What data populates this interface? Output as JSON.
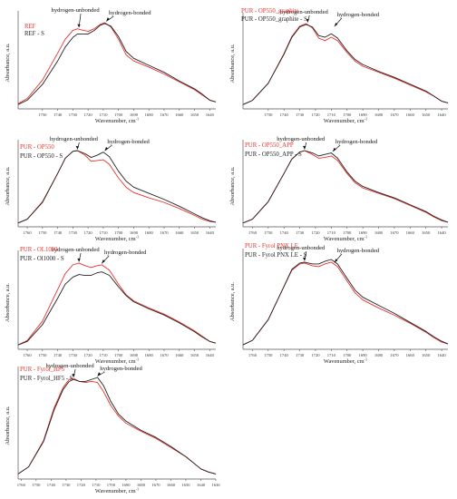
{
  "chart_data": [
    {
      "type": "line",
      "ylabel": "Absorbance, a.u.",
      "xlabel": "Wavenumber, cm",
      "xlabel_sup": "-1",
      "x_reversed": true,
      "xlim": [
        1766,
        1636
      ],
      "ylim": [
        0,
        1
      ],
      "x_ticks": [
        "1750",
        "1740",
        "1730",
        "1720",
        "1710",
        "1700",
        "1690",
        "1680",
        "1670",
        "1660",
        "1650",
        "1640"
      ],
      "annotations": [
        "hydrogen-unbonded",
        "hydrogen-bonded"
      ],
      "annotation_x": [
        1726,
        1708
      ],
      "series": [
        {
          "name": "REF",
          "color": "#e8322b",
          "x": [
            1766,
            1760,
            1750,
            1740,
            1735,
            1730,
            1727,
            1725,
            1720,
            1716,
            1712,
            1709,
            1705,
            1700,
            1695,
            1690,
            1680,
            1670,
            1660,
            1650,
            1645,
            1640,
            1636
          ],
          "y": [
            0.06,
            0.12,
            0.33,
            0.64,
            0.8,
            0.9,
            0.92,
            0.91,
            0.89,
            0.92,
            0.97,
            0.99,
            0.94,
            0.8,
            0.62,
            0.55,
            0.48,
            0.4,
            0.31,
            0.22,
            0.16,
            0.1,
            0.08
          ]
        },
        {
          "name": "REF - S",
          "color": "#222222",
          "x": [
            1766,
            1760,
            1750,
            1740,
            1735,
            1730,
            1727,
            1725,
            1720,
            1716,
            1712,
            1709,
            1705,
            1700,
            1695,
            1690,
            1680,
            1670,
            1660,
            1650,
            1645,
            1640,
            1636
          ],
          "y": [
            0.05,
            0.1,
            0.28,
            0.55,
            0.71,
            0.82,
            0.86,
            0.86,
            0.86,
            0.9,
            0.96,
            0.98,
            0.95,
            0.83,
            0.66,
            0.58,
            0.5,
            0.42,
            0.32,
            0.23,
            0.17,
            0.1,
            0.08
          ]
        }
      ]
    },
    {
      "type": "line",
      "ylabel": "Absorbance, a.u.",
      "xlabel": "Wavenumber, cm",
      "xlabel_sup": "-1",
      "x_reversed": true,
      "xlim": [
        1766,
        1636
      ],
      "ylim": [
        0,
        1
      ],
      "x_ticks": [
        "1750",
        "1740",
        "1730",
        "1720",
        "1710",
        "1700",
        "1690",
        "1680",
        "1670",
        "1660",
        "1650",
        "1640"
      ],
      "annotations": [
        "hydrogen-unbonded",
        "hydrogen-bonded"
      ],
      "annotation_x": [
        1725,
        1708
      ],
      "series": [
        {
          "name": "PUR - OP550_graphite",
          "color": "#e8322b",
          "x": [
            1766,
            1760,
            1750,
            1740,
            1735,
            1730,
            1726,
            1722,
            1718,
            1714,
            1710,
            1706,
            1700,
            1695,
            1690,
            1680,
            1670,
            1660,
            1650,
            1645,
            1640,
            1636
          ],
          "y": [
            0.05,
            0.1,
            0.3,
            0.65,
            0.85,
            0.97,
            1.0,
            0.95,
            0.83,
            0.8,
            0.84,
            0.8,
            0.66,
            0.56,
            0.5,
            0.43,
            0.36,
            0.28,
            0.2,
            0.15,
            0.09,
            0.07
          ]
        },
        {
          "name": "PUR - OP550_graphite - S",
          "color": "#222222",
          "x": [
            1766,
            1760,
            1750,
            1740,
            1735,
            1730,
            1726,
            1722,
            1718,
            1714,
            1710,
            1706,
            1700,
            1695,
            1690,
            1680,
            1670,
            1660,
            1650,
            1645,
            1640,
            1636
          ],
          "y": [
            0.05,
            0.1,
            0.3,
            0.64,
            0.84,
            0.96,
            0.99,
            0.96,
            0.86,
            0.84,
            0.88,
            0.83,
            0.68,
            0.58,
            0.52,
            0.44,
            0.37,
            0.29,
            0.21,
            0.15,
            0.09,
            0.07
          ]
        }
      ]
    },
    {
      "type": "line",
      "ylabel": "Absorbance, a.u.",
      "xlabel": "Wavenumber, cm",
      "xlabel_sup": "-1",
      "x_reversed": true,
      "xlim": [
        1766,
        1636
      ],
      "ylim": [
        0,
        1
      ],
      "x_ticks": [
        "1760",
        "1750",
        "1740",
        "1730",
        "1720",
        "1710",
        "1700",
        "1690",
        "1680",
        "1670",
        "1660",
        "1650",
        "1640"
      ],
      "annotations": [
        "hydrogen-unbonded",
        "hydrogen-bonded"
      ],
      "annotation_x": [
        1727,
        1709
      ],
      "series": [
        {
          "name": "PUR - OP550",
          "color": "#e8322b",
          "x": [
            1766,
            1760,
            1750,
            1740,
            1735,
            1730,
            1727,
            1722,
            1718,
            1714,
            1710,
            1706,
            1700,
            1695,
            1690,
            1680,
            1670,
            1660,
            1650,
            1645,
            1640,
            1636
          ],
          "y": [
            0.05,
            0.1,
            0.33,
            0.7,
            0.9,
            0.99,
            1.0,
            0.94,
            0.86,
            0.87,
            0.88,
            0.82,
            0.64,
            0.52,
            0.45,
            0.38,
            0.32,
            0.24,
            0.15,
            0.1,
            0.07,
            0.06
          ]
        },
        {
          "name": "PUR - OP550 - S",
          "color": "#222222",
          "x": [
            1766,
            1760,
            1750,
            1740,
            1735,
            1730,
            1727,
            1722,
            1718,
            1714,
            1710,
            1706,
            1700,
            1695,
            1690,
            1680,
            1670,
            1660,
            1650,
            1645,
            1640,
            1636
          ],
          "y": [
            0.05,
            0.1,
            0.32,
            0.7,
            0.9,
            0.99,
            1.0,
            0.96,
            0.91,
            0.94,
            0.98,
            0.92,
            0.73,
            0.6,
            0.52,
            0.44,
            0.36,
            0.27,
            0.17,
            0.12,
            0.08,
            0.06
          ]
        }
      ]
    },
    {
      "type": "line",
      "ylabel": "Absorbance, a.u.",
      "xlabel": "Wavenumber, cm",
      "xlabel_sup": "-1",
      "x_reversed": true,
      "xlim": [
        1766,
        1636
      ],
      "ylim": [
        0,
        1
      ],
      "x_ticks": [
        "1760",
        "1750",
        "1740",
        "1730",
        "1720",
        "1710",
        "1700",
        "1690",
        "1680",
        "1670",
        "1660",
        "1650",
        "1640"
      ],
      "annotations": [
        "hydrogen-unbonded",
        "hydrogen-bonded"
      ],
      "annotation_x": [
        1727,
        1709
      ],
      "series": [
        {
          "name": "PUR - OP550_APP",
          "color": "#e8322b",
          "x": [
            1766,
            1760,
            1750,
            1740,
            1735,
            1730,
            1727,
            1722,
            1718,
            1714,
            1710,
            1706,
            1700,
            1695,
            1690,
            1680,
            1670,
            1660,
            1650,
            1645,
            1640,
            1636
          ],
          "y": [
            0.05,
            0.1,
            0.33,
            0.7,
            0.89,
            0.98,
            1.0,
            0.95,
            0.9,
            0.91,
            0.93,
            0.87,
            0.7,
            0.58,
            0.51,
            0.44,
            0.37,
            0.28,
            0.19,
            0.13,
            0.08,
            0.06
          ]
        },
        {
          "name": "PUR - OP550_APP - S",
          "color": "#222222",
          "x": [
            1766,
            1760,
            1750,
            1740,
            1735,
            1730,
            1727,
            1722,
            1718,
            1714,
            1710,
            1706,
            1700,
            1695,
            1690,
            1680,
            1670,
            1660,
            1650,
            1645,
            1640,
            1636
          ],
          "y": [
            0.05,
            0.1,
            0.33,
            0.7,
            0.89,
            0.98,
            1.0,
            0.97,
            0.93,
            0.95,
            0.97,
            0.9,
            0.72,
            0.6,
            0.53,
            0.45,
            0.38,
            0.29,
            0.2,
            0.14,
            0.09,
            0.06
          ]
        }
      ]
    },
    {
      "type": "line",
      "ylabel": "Absorbance, a.u.",
      "xlabel": "Wavenumber, cm",
      "xlabel_sup": "-1",
      "x_reversed": true,
      "xlim": [
        1766,
        1636
      ],
      "ylim": [
        0,
        1
      ],
      "x_ticks": [
        "1760",
        "1750",
        "1740",
        "1730",
        "1720",
        "1710",
        "1700",
        "1690",
        "1680",
        "1670",
        "1660",
        "1650",
        "1640"
      ],
      "annotations": [
        "hydrogen-unbonded",
        "hydrogen-bonded"
      ],
      "annotation_x": [
        1726,
        1711
      ],
      "series": [
        {
          "name": "PUR - OL1000",
          "color": "#e8322b",
          "x": [
            1766,
            1760,
            1750,
            1740,
            1735,
            1730,
            1726,
            1722,
            1718,
            1714,
            1711,
            1706,
            1700,
            1695,
            1690,
            1680,
            1670,
            1660,
            1650,
            1645,
            1640,
            1636
          ],
          "y": [
            0.05,
            0.1,
            0.32,
            0.68,
            0.86,
            0.96,
            0.98,
            0.95,
            0.93,
            0.95,
            0.96,
            0.9,
            0.74,
            0.62,
            0.55,
            0.47,
            0.4,
            0.31,
            0.21,
            0.15,
            0.09,
            0.07
          ]
        },
        {
          "name": "PUR - Ol1000 - S",
          "color": "#222222",
          "x": [
            1766,
            1760,
            1750,
            1740,
            1735,
            1730,
            1726,
            1722,
            1718,
            1714,
            1711,
            1706,
            1700,
            1695,
            1690,
            1680,
            1670,
            1660,
            1650,
            1645,
            1640,
            1636
          ],
          "y": [
            0.05,
            0.09,
            0.28,
            0.58,
            0.74,
            0.82,
            0.85,
            0.84,
            0.84,
            0.87,
            0.88,
            0.84,
            0.71,
            0.61,
            0.54,
            0.46,
            0.39,
            0.3,
            0.2,
            0.14,
            0.09,
            0.07
          ]
        }
      ]
    },
    {
      "type": "line",
      "ylabel": "Absorbance, a.u.",
      "xlabel": "Wavenumber, cm",
      "xlabel_sup": "-1",
      "x_reversed": true,
      "xlim": [
        1766,
        1636
      ],
      "ylim": [
        0,
        1
      ],
      "x_ticks": [
        "1760",
        "1750",
        "1740",
        "1730",
        "1720",
        "1710",
        "1700",
        "1690",
        "1680",
        "1670",
        "1660",
        "1650",
        "1640"
      ],
      "annotations": [
        "hydrogen-unbonded",
        "hydrogen-bonded"
      ],
      "annotation_x": [
        1727,
        1708
      ],
      "series": [
        {
          "name": "PUR - Fyrol PNX LE",
          "color": "#e8322b",
          "x": [
            1766,
            1760,
            1750,
            1740,
            1735,
            1730,
            1727,
            1722,
            1718,
            1714,
            1710,
            1706,
            1700,
            1695,
            1690,
            1680,
            1670,
            1660,
            1650,
            1645,
            1640,
            1636
          ],
          "y": [
            0.05,
            0.1,
            0.33,
            0.7,
            0.88,
            0.95,
            0.96,
            0.93,
            0.92,
            0.95,
            0.97,
            0.92,
            0.76,
            0.63,
            0.55,
            0.46,
            0.38,
            0.29,
            0.19,
            0.13,
            0.08,
            0.06
          ]
        },
        {
          "name": "PUR - Fyrol PNX LE - S",
          "color": "#222222",
          "x": [
            1766,
            1760,
            1750,
            1740,
            1735,
            1730,
            1727,
            1722,
            1718,
            1714,
            1710,
            1706,
            1700,
            1695,
            1690,
            1680,
            1670,
            1660,
            1650,
            1645,
            1640,
            1636
          ],
          "y": [
            0.05,
            0.1,
            0.33,
            0.7,
            0.89,
            0.96,
            0.97,
            0.95,
            0.95,
            0.98,
            1.0,
            0.95,
            0.79,
            0.66,
            0.58,
            0.49,
            0.4,
            0.3,
            0.2,
            0.14,
            0.09,
            0.06
          ]
        }
      ]
    },
    {
      "type": "line",
      "ylabel": "Absorbance, a.u.",
      "xlabel": "Wavenumber, cm",
      "xlabel_sup": "-1",
      "x_reversed": true,
      "xlim": [
        1762,
        1630
      ],
      "ylim": [
        0,
        1
      ],
      "x_ticks": [
        "1760",
        "1750",
        "1740",
        "1730",
        "1720",
        "1710",
        "1700",
        "1690",
        "1680",
        "1670",
        "1660",
        "1650",
        "1640",
        "1630"
      ],
      "annotations": [
        "hydrogen-unbonded",
        "hydrogen-bonded"
      ],
      "annotation_x": [
        1725,
        1709
      ],
      "series": [
        {
          "name": "PUR - Fyrol_HF5",
          "color": "#e8322b",
          "x": [
            1762,
            1755,
            1745,
            1738,
            1732,
            1728,
            1725,
            1721,
            1717,
            1713,
            1709,
            1705,
            1700,
            1695,
            1690,
            1680,
            1670,
            1660,
            1650,
            1645,
            1640,
            1635,
            1630
          ],
          "y": [
            0.05,
            0.12,
            0.38,
            0.7,
            0.9,
            0.98,
            0.99,
            0.96,
            0.95,
            0.96,
            0.95,
            0.86,
            0.72,
            0.62,
            0.55,
            0.47,
            0.4,
            0.31,
            0.22,
            0.16,
            0.1,
            0.07,
            0.05
          ]
        },
        {
          "name": "PUR - Fyrol_HF5 - S",
          "color": "#222222",
          "x": [
            1762,
            1755,
            1745,
            1738,
            1732,
            1728,
            1725,
            1721,
            1717,
            1713,
            1709,
            1705,
            1700,
            1695,
            1690,
            1680,
            1670,
            1660,
            1650,
            1645,
            1640,
            1635,
            1630
          ],
          "y": [
            0.05,
            0.12,
            0.37,
            0.68,
            0.88,
            0.96,
            0.98,
            0.96,
            0.96,
            0.98,
            1.0,
            0.92,
            0.76,
            0.64,
            0.57,
            0.48,
            0.41,
            0.32,
            0.22,
            0.16,
            0.1,
            0.07,
            0.05
          ]
        }
      ]
    }
  ]
}
